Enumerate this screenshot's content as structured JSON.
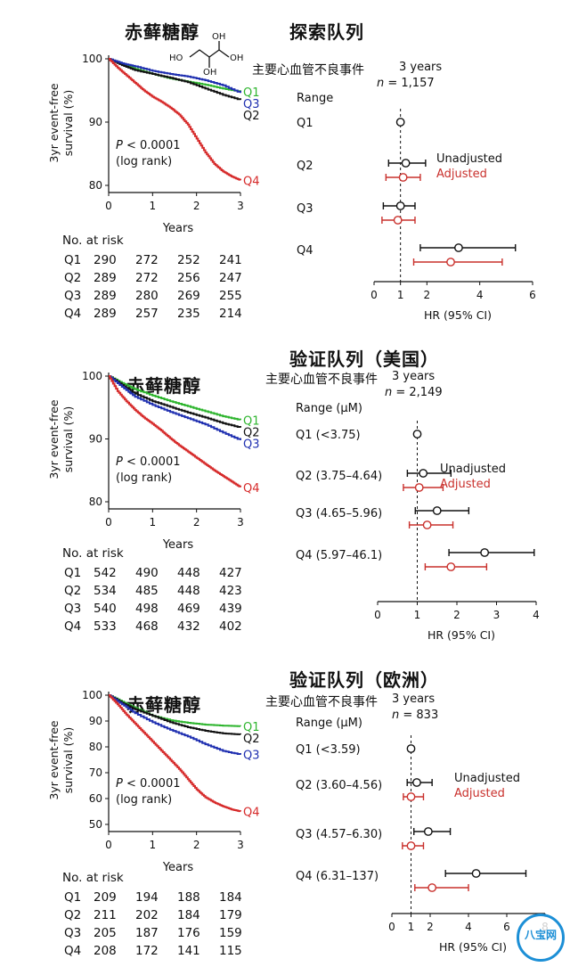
{
  "panels": [
    {
      "compound": "赤藓糖醇",
      "cohort": "探索队列",
      "outcome": "主要心血管不良事件",
      "horizon": "3 years",
      "n_label": "n",
      "n_value": "= 1,157",
      "km": {
        "ylabel1": "3yr event-free",
        "ylabel2": "survival (%)",
        "xlabel": "Years",
        "yticks": [
          80,
          90,
          100
        ],
        "xticks": [
          0,
          1,
          2,
          3
        ],
        "ylim": [
          80,
          100
        ],
        "xlim": [
          0,
          3
        ],
        "p_text": "P < 0.0001",
        "p_sub": "(log rank)",
        "series": [
          {
            "name": "Q1",
            "color": "#2fb52f",
            "points": [
              [
                0,
                100
              ],
              [
                0.3,
                99.2
              ],
              [
                0.6,
                98.4
              ],
              [
                1,
                97.6
              ],
              [
                1.4,
                96.9
              ],
              [
                1.8,
                96.4
              ],
              [
                2.2,
                95.9
              ],
              [
                2.6,
                95.3
              ],
              [
                3,
                94.8
              ]
            ]
          },
          {
            "name": "Q2",
            "color": "#111111",
            "points": [
              [
                0,
                100
              ],
              [
                0.3,
                99
              ],
              [
                0.6,
                98.2
              ],
              [
                1,
                97.6
              ],
              [
                1.4,
                97
              ],
              [
                1.8,
                96.3
              ],
              [
                2.2,
                95.3
              ],
              [
                2.6,
                94.3
              ],
              [
                3,
                93.5
              ]
            ]
          },
          {
            "name": "Q3",
            "color": "#1f2fb0",
            "points": [
              [
                0,
                100
              ],
              [
                0.3,
                99.3
              ],
              [
                0.6,
                98.8
              ],
              [
                1,
                98.1
              ],
              [
                1.4,
                97.6
              ],
              [
                1.8,
                97.2
              ],
              [
                2.2,
                96.6
              ],
              [
                2.6,
                95.8
              ],
              [
                3,
                94.6
              ]
            ]
          },
          {
            "name": "Q4",
            "color": "#d62a2a",
            "points": [
              [
                0,
                100
              ],
              [
                0.2,
                98.6
              ],
              [
                0.4,
                97.4
              ],
              [
                0.6,
                96.2
              ],
              [
                0.8,
                95
              ],
              [
                1,
                94
              ],
              [
                1.2,
                93.2
              ],
              [
                1.4,
                92.3
              ],
              [
                1.6,
                91.2
              ],
              [
                1.8,
                89.6
              ],
              [
                2,
                87.4
              ],
              [
                2.2,
                85.2
              ],
              [
                2.4,
                83.4
              ],
              [
                2.6,
                82.2
              ],
              [
                2.8,
                81.4
              ],
              [
                3,
                80.8
              ]
            ]
          }
        ]
      },
      "risk": {
        "header": "No. at risk",
        "rows": [
          {
            "label": "Q1",
            "values": [
              "290",
              "272",
              "252",
              "241"
            ]
          },
          {
            "label": "Q2",
            "values": [
              "289",
              "272",
              "256",
              "247"
            ]
          },
          {
            "label": "Q3",
            "values": [
              "289",
              "280",
              "269",
              "255"
            ]
          },
          {
            "label": "Q4",
            "values": [
              "289",
              "257",
              "235",
              "214"
            ]
          }
        ]
      },
      "forest": {
        "range_header": "Range",
        "rows": [
          "Q1",
          "Q2",
          "Q3",
          "Q4"
        ],
        "xticks": [
          "0",
          "1",
          "2",
          "4",
          "6"
        ],
        "xtick_vals": [
          0,
          1,
          2,
          4,
          6
        ],
        "xlim": [
          0,
          6
        ],
        "xlabel": "HR (95% CI)",
        "legend_unadj": "Unadjusted",
        "legend_adj": "Adjusted",
        "unadjusted": [
          {
            "hr": 1,
            "lo": 1,
            "hi": 1
          },
          {
            "hr": 1.2,
            "lo": 0.55,
            "hi": 1.95
          },
          {
            "hr": 1.0,
            "lo": 0.35,
            "hi": 1.55
          },
          {
            "hr": 3.2,
            "lo": 1.75,
            "hi": 5.35
          }
        ],
        "adjusted": [
          {
            "hr": null,
            "lo": null,
            "hi": null
          },
          {
            "hr": 1.1,
            "lo": 0.45,
            "hi": 1.75
          },
          {
            "hr": 0.9,
            "lo": 0.3,
            "hi": 1.55
          },
          {
            "hr": 2.9,
            "lo": 1.5,
            "hi": 4.85
          }
        ]
      }
    },
    {
      "compound": "赤藓糖醇",
      "cohort": "验证队列（美国）",
      "outcome": "主要心血管不良事件",
      "horizon": "3 years",
      "n_label": "n",
      "n_value": "= 2,149",
      "km": {
        "ylabel1": "3yr event-free",
        "ylabel2": "survival (%)",
        "xlabel": "Years",
        "yticks": [
          80,
          90,
          100
        ],
        "xticks": [
          0,
          1,
          2,
          3
        ],
        "ylim": [
          80,
          100
        ],
        "xlim": [
          0,
          3
        ],
        "p_text": "P < 0.0001",
        "p_sub": "(log rank)",
        "series": [
          {
            "name": "Q1",
            "color": "#2fb52f",
            "points": [
              [
                0,
                100
              ],
              [
                0.3,
                98.9
              ],
              [
                0.6,
                97.9
              ],
              [
                1,
                96.9
              ],
              [
                1.4,
                96
              ],
              [
                1.8,
                95.2
              ],
              [
                2.2,
                94.4
              ],
              [
                2.6,
                93.6
              ],
              [
                3,
                93
              ]
            ]
          },
          {
            "name": "Q2",
            "color": "#111111",
            "points": [
              [
                0,
                100
              ],
              [
                0.3,
                98.6
              ],
              [
                0.6,
                97.2
              ],
              [
                1,
                96
              ],
              [
                1.4,
                95.1
              ],
              [
                1.8,
                94.2
              ],
              [
                2.2,
                93.4
              ],
              [
                2.6,
                92.5
              ],
              [
                3,
                91.8
              ]
            ]
          },
          {
            "name": "Q3",
            "color": "#1f2fb0",
            "points": [
              [
                0,
                100
              ],
              [
                0.3,
                98.3
              ],
              [
                0.6,
                96.7
              ],
              [
                1,
                95.4
              ],
              [
                1.4,
                94.3
              ],
              [
                1.8,
                93.3
              ],
              [
                2.2,
                92.3
              ],
              [
                2.6,
                91
              ],
              [
                3,
                89.8
              ]
            ]
          },
          {
            "name": "Q4",
            "color": "#d62a2a",
            "points": [
              [
                0,
                100
              ],
              [
                0.2,
                97.6
              ],
              [
                0.4,
                96
              ],
              [
                0.6,
                94.6
              ],
              [
                0.8,
                93.4
              ],
              [
                1,
                92.4
              ],
              [
                1.2,
                91.3
              ],
              [
                1.4,
                90.1
              ],
              [
                1.6,
                89
              ],
              [
                1.8,
                88
              ],
              [
                2,
                87
              ],
              [
                2.2,
                86
              ],
              [
                2.4,
                85
              ],
              [
                2.6,
                84.1
              ],
              [
                2.8,
                83.2
              ],
              [
                3,
                82.3
              ]
            ]
          }
        ]
      },
      "risk": {
        "header": "No. at risk",
        "rows": [
          {
            "label": "Q1",
            "values": [
              "542",
              "490",
              "448",
              "427"
            ]
          },
          {
            "label": "Q2",
            "values": [
              "534",
              "485",
              "448",
              "423"
            ]
          },
          {
            "label": "Q3",
            "values": [
              "540",
              "498",
              "469",
              "439"
            ]
          },
          {
            "label": "Q4",
            "values": [
              "533",
              "468",
              "432",
              "402"
            ]
          }
        ]
      },
      "forest": {
        "range_header": "Range (μM)",
        "rows": [
          "Q1 (<3.75)",
          "Q2 (3.75–4.64)",
          "Q3 (4.65–5.96)",
          "Q4 (5.97–46.1)"
        ],
        "xticks": [
          "0",
          "1",
          "2",
          "3",
          "4"
        ],
        "xtick_vals": [
          0,
          1,
          2,
          3,
          4
        ],
        "xlim": [
          0,
          4
        ],
        "xlabel": "HR (95% CI)",
        "legend_unadj": "Unadjusted",
        "legend_adj": "Adjusted",
        "unadjusted": [
          {
            "hr": 1,
            "lo": 1,
            "hi": 1
          },
          {
            "hr": 1.15,
            "lo": 0.75,
            "hi": 1.85
          },
          {
            "hr": 1.5,
            "lo": 0.95,
            "hi": 2.3
          },
          {
            "hr": 2.7,
            "lo": 1.8,
            "hi": 3.95
          }
        ],
        "adjusted": [
          {
            "hr": null,
            "lo": null,
            "hi": null
          },
          {
            "hr": 1.05,
            "lo": 0.65,
            "hi": 1.65
          },
          {
            "hr": 1.25,
            "lo": 0.8,
            "hi": 1.9
          },
          {
            "hr": 1.85,
            "lo": 1.2,
            "hi": 2.75
          }
        ]
      }
    },
    {
      "compound": "赤藓糖醇",
      "cohort": "验证队列（欧洲）",
      "outcome": "主要心血管不良事件",
      "horizon": "3 years",
      "n_label": "n",
      "n_value": "= 833",
      "km": {
        "ylabel1": "3yr event-free",
        "ylabel2": "survival (%)",
        "xlabel": "Years",
        "yticks": [
          50,
          60,
          70,
          80,
          90,
          100
        ],
        "xticks": [
          0,
          1,
          2,
          3
        ],
        "ylim": [
          50,
          100
        ],
        "xlim": [
          0,
          3
        ],
        "p_text": "P < 0.0001",
        "p_sub": "(log rank)",
        "series": [
          {
            "name": "Q1",
            "color": "#2fb52f",
            "points": [
              [
                0,
                100
              ],
              [
                0.3,
                97.5
              ],
              [
                0.6,
                95
              ],
              [
                1,
                92
              ],
              [
                1.4,
                90.3
              ],
              [
                1.8,
                89.3
              ],
              [
                2.2,
                88.6
              ],
              [
                2.6,
                88.2
              ],
              [
                3,
                88
              ]
            ]
          },
          {
            "name": "Q2",
            "color": "#111111",
            "points": [
              [
                0,
                100
              ],
              [
                0.3,
                97
              ],
              [
                0.6,
                94.5
              ],
              [
                1,
                92
              ],
              [
                1.4,
                89.5
              ],
              [
                1.8,
                87.6
              ],
              [
                2.2,
                86.2
              ],
              [
                2.6,
                85.2
              ],
              [
                3,
                84.8
              ]
            ]
          },
          {
            "name": "Q3",
            "color": "#1f2fb0",
            "points": [
              [
                0,
                100
              ],
              [
                0.3,
                96.5
              ],
              [
                0.6,
                93
              ],
              [
                1,
                89.5
              ],
              [
                1.4,
                86.6
              ],
              [
                1.8,
                84
              ],
              [
                2.2,
                81
              ],
              [
                2.6,
                78.4
              ],
              [
                3,
                77
              ]
            ]
          },
          {
            "name": "Q4",
            "color": "#d62a2a",
            "points": [
              [
                0,
                100
              ],
              [
                0.2,
                96.5
              ],
              [
                0.4,
                92.5
              ],
              [
                0.6,
                89
              ],
              [
                0.8,
                85.5
              ],
              [
                1,
                82
              ],
              [
                1.2,
                78.5
              ],
              [
                1.4,
                75
              ],
              [
                1.6,
                71.5
              ],
              [
                1.8,
                67.5
              ],
              [
                2,
                63.5
              ],
              [
                2.2,
                60.5
              ],
              [
                2.4,
                58.5
              ],
              [
                2.6,
                57
              ],
              [
                2.8,
                55.8
              ],
              [
                3,
                55
              ]
            ]
          }
        ]
      },
      "risk": {
        "header": "No. at risk",
        "rows": [
          {
            "label": "Q1",
            "values": [
              "209",
              "194",
              "188",
              "184"
            ]
          },
          {
            "label": "Q2",
            "values": [
              "211",
              "202",
              "184",
              "179"
            ]
          },
          {
            "label": "Q3",
            "values": [
              "205",
              "187",
              "176",
              "159"
            ]
          },
          {
            "label": "Q4",
            "values": [
              "208",
              "172",
              "141",
              "115"
            ]
          }
        ]
      },
      "forest": {
        "range_header": "Range (μM)",
        "rows": [
          "Q1 (<3.59)",
          "Q2 (3.60–4.56)",
          "Q3 (4.57–6.30)",
          "Q4 (6.31–137)"
        ],
        "xticks": [
          "0",
          "1",
          "2",
          "4",
          "6",
          "8"
        ],
        "xtick_vals": [
          0,
          1,
          2,
          4,
          6,
          8
        ],
        "xlim": [
          0,
          8
        ],
        "xlabel": "HR (95% CI)",
        "legend_unadj": "Unadjusted",
        "legend_adj": "Adjusted",
        "unadjusted": [
          {
            "hr": 1,
            "lo": 1,
            "hi": 1
          },
          {
            "hr": 1.3,
            "lo": 0.8,
            "hi": 2.1
          },
          {
            "hr": 1.9,
            "lo": 1.15,
            "hi": 3.05
          },
          {
            "hr": 4.4,
            "lo": 2.8,
            "hi": 7.0
          }
        ],
        "adjusted": [
          {
            "hr": null,
            "lo": null,
            "hi": null
          },
          {
            "hr": 1.0,
            "lo": 0.6,
            "hi": 1.65
          },
          {
            "hr": 1.0,
            "lo": 0.55,
            "hi": 1.65
          },
          {
            "hr": 2.1,
            "lo": 1.2,
            "hi": 4.0
          }
        ]
      }
    }
  ],
  "watermark": "八宝网"
}
